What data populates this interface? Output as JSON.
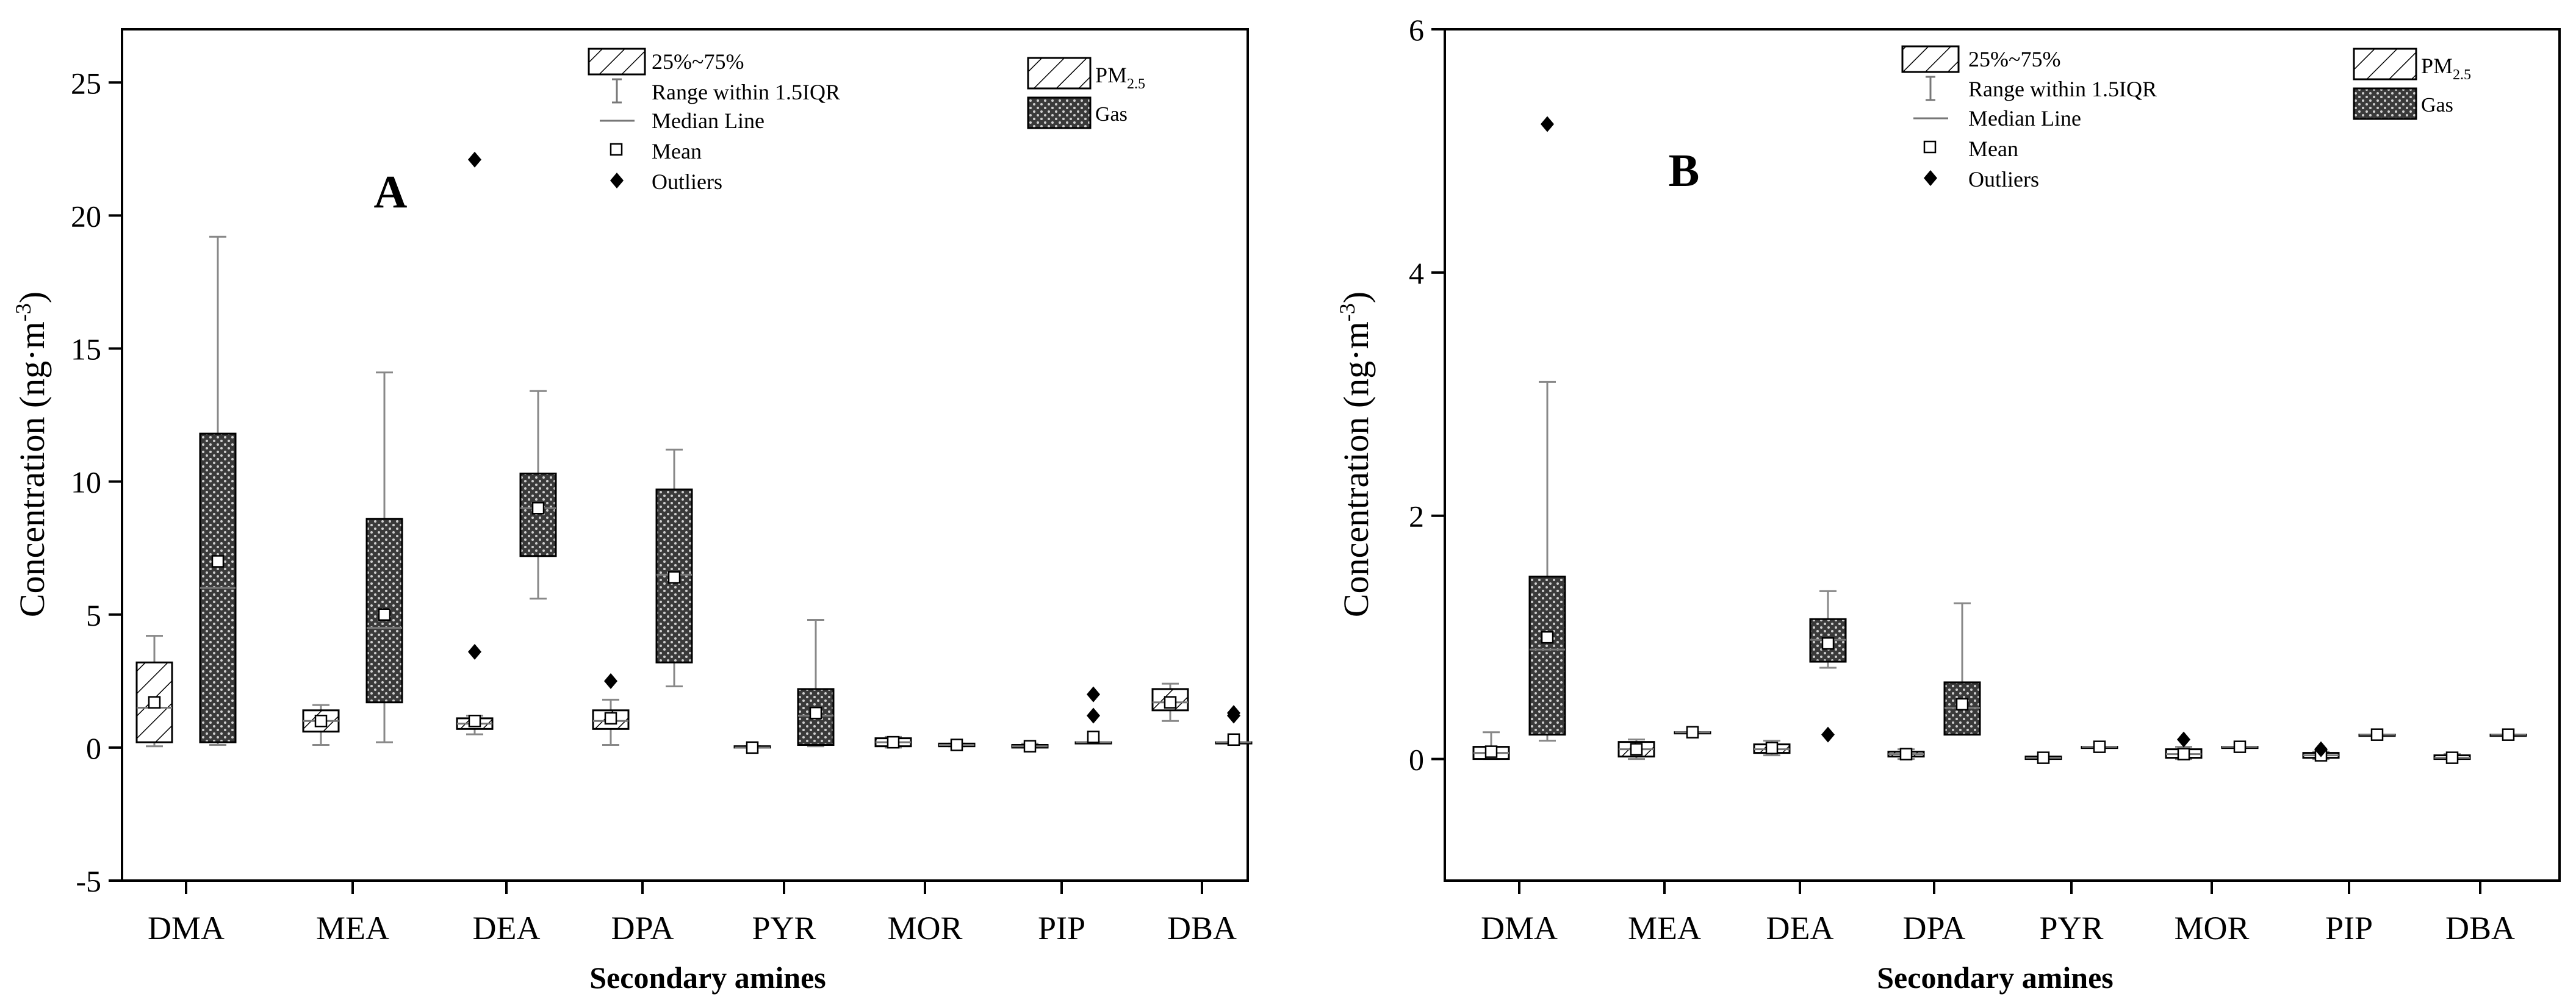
{
  "chart_data": [
    {
      "type": "box",
      "panel_label": "A",
      "xlabel": "Secondary amines",
      "ylabel_main": "Concentration (ng·m",
      "ylabel_sup": "-3",
      "ylabel_close": ")",
      "ylim": [
        -5,
        27
      ],
      "yticks": [
        "-5",
        "0",
        "5",
        "10",
        "15",
        "20",
        "25"
      ],
      "categories": [
        "DMA",
        "MEA",
        "DEA",
        "DPA",
        "PYR",
        "MOR",
        "PIP",
        "DBA"
      ],
      "series": [
        {
          "name": "PM2.5",
          "boxes": [
            {
              "q1": 0.2,
              "q3": 3.2,
              "median": 1.5,
              "whisker_low": 0.05,
              "whisker_high": 4.2,
              "mean": 1.7,
              "outliers": []
            },
            {
              "q1": 0.6,
              "q3": 1.4,
              "median": 1.0,
              "whisker_low": 0.1,
              "whisker_high": 1.6,
              "mean": 1.0,
              "outliers": []
            },
            {
              "q1": 0.7,
              "q3": 1.1,
              "median": 0.9,
              "whisker_low": 0.5,
              "whisker_high": 1.2,
              "mean": 1.0,
              "outliers": [
                3.6,
                22.1
              ]
            },
            {
              "q1": 0.7,
              "q3": 1.4,
              "median": 1.0,
              "whisker_low": 0.1,
              "whisker_high": 1.8,
              "mean": 1.1,
              "outliers": [
                2.5
              ]
            },
            {
              "q1": 0.0,
              "q3": 0.05,
              "median": 0.0,
              "whisker_low": 0.0,
              "whisker_high": 0.05,
              "mean": 0.0,
              "outliers": []
            },
            {
              "q1": 0.05,
              "q3": 0.35,
              "median": 0.2,
              "whisker_low": 0.0,
              "whisker_high": 0.4,
              "mean": 0.2,
              "outliers": []
            },
            {
              "q1": 0.0,
              "q3": 0.1,
              "median": 0.05,
              "whisker_low": 0.0,
              "whisker_high": 0.15,
              "mean": 0.05,
              "outliers": []
            },
            {
              "q1": 1.4,
              "q3": 2.2,
              "median": 1.7,
              "whisker_low": 1.0,
              "whisker_high": 2.4,
              "mean": 1.7,
              "outliers": []
            }
          ]
        },
        {
          "name": "Gas",
          "boxes": [
            {
              "q1": 0.2,
              "q3": 11.8,
              "median": 6.0,
              "whisker_low": 0.1,
              "whisker_high": 19.2,
              "mean": 7.0,
              "outliers": []
            },
            {
              "q1": 1.7,
              "q3": 8.6,
              "median": 4.5,
              "whisker_low": 0.2,
              "whisker_high": 14.1,
              "mean": 5.0,
              "outliers": []
            },
            {
              "q1": 7.2,
              "q3": 10.3,
              "median": 9.0,
              "whisker_low": 5.6,
              "whisker_high": 13.4,
              "mean": 9.0,
              "outliers": []
            },
            {
              "q1": 3.2,
              "q3": 9.7,
              "median": 6.5,
              "whisker_low": 2.3,
              "whisker_high": 11.2,
              "mean": 6.4,
              "outliers": []
            },
            {
              "q1": 0.1,
              "q3": 2.2,
              "median": 1.2,
              "whisker_low": 0.05,
              "whisker_high": 4.8,
              "mean": 1.3,
              "outliers": []
            },
            {
              "q1": 0.05,
              "q3": 0.15,
              "median": 0.1,
              "whisker_low": 0.05,
              "whisker_high": 0.15,
              "mean": 0.1,
              "outliers": []
            },
            {
              "q1": 0.2,
              "q3": 0.2,
              "median": 0.2,
              "whisker_low": 0.2,
              "whisker_high": 0.2,
              "mean": 0.4,
              "outliers": [
                1.2,
                2.0
              ]
            },
            {
              "q1": 0.2,
              "q3": 0.2,
              "median": 0.2,
              "whisker_low": 0.2,
              "whisker_high": 0.2,
              "mean": 0.3,
              "outliers": [
                1.2,
                1.3
              ]
            }
          ]
        }
      ]
    },
    {
      "type": "box",
      "panel_label": "B",
      "xlabel": "Secondary amines",
      "ylabel_main": "Concentration (ng·m",
      "ylabel_sup": "-3",
      "ylabel_close": ")",
      "ylim": [
        -1,
        6
      ],
      "yticks": [
        "0",
        "2",
        "4",
        "6"
      ],
      "categories": [
        "DMA",
        "MEA",
        "DEA",
        "DPA",
        "PYR",
        "MOR",
        "PIP",
        "DBA"
      ],
      "series": [
        {
          "name": "PM2.5",
          "boxes": [
            {
              "q1": 0.0,
              "q3": 0.1,
              "median": 0.05,
              "whisker_low": 0.0,
              "whisker_high": 0.22,
              "mean": 0.06,
              "outliers": []
            },
            {
              "q1": 0.02,
              "q3": 0.14,
              "median": 0.08,
              "whisker_low": 0.0,
              "whisker_high": 0.16,
              "mean": 0.08,
              "outliers": []
            },
            {
              "q1": 0.05,
              "q3": 0.12,
              "median": 0.08,
              "whisker_low": 0.03,
              "whisker_high": 0.15,
              "mean": 0.09,
              "outliers": []
            },
            {
              "q1": 0.02,
              "q3": 0.06,
              "median": 0.04,
              "whisker_low": 0.0,
              "whisker_high": 0.08,
              "mean": 0.04,
              "outliers": []
            },
            {
              "q1": 0.0,
              "q3": 0.02,
              "median": 0.01,
              "whisker_low": 0.0,
              "whisker_high": 0.02,
              "mean": 0.01,
              "outliers": []
            },
            {
              "q1": 0.01,
              "q3": 0.08,
              "median": 0.04,
              "whisker_low": 0.0,
              "whisker_high": 0.1,
              "mean": 0.04,
              "outliers": [
                0.16
              ]
            },
            {
              "q1": 0.01,
              "q3": 0.05,
              "median": 0.03,
              "whisker_low": 0.0,
              "whisker_high": 0.06,
              "mean": 0.03,
              "outliers": [
                0.08
              ]
            },
            {
              "q1": 0.0,
              "q3": 0.03,
              "median": 0.01,
              "whisker_low": 0.0,
              "whisker_high": 0.04,
              "mean": 0.01,
              "outliers": []
            }
          ]
        },
        {
          "name": "Gas",
          "boxes": [
            {
              "q1": 0.2,
              "q3": 1.5,
              "median": 0.9,
              "whisker_low": 0.15,
              "whisker_high": 3.1,
              "mean": 1.0,
              "outliers": [
                5.22
              ]
            },
            {
              "q1": 0.22,
              "q3": 0.22,
              "median": 0.22,
              "whisker_low": 0.22,
              "whisker_high": 0.22,
              "mean": 0.22,
              "outliers": []
            },
            {
              "q1": 0.8,
              "q3": 1.15,
              "median": 0.98,
              "whisker_low": 0.75,
              "whisker_high": 1.38,
              "mean": 0.95,
              "outliers": [
                0.2
              ]
            },
            {
              "q1": 0.2,
              "q3": 0.63,
              "median": 0.42,
              "whisker_low": 0.2,
              "whisker_high": 1.28,
              "mean": 0.45,
              "outliers": []
            },
            {
              "q1": 0.1,
              "q3": 0.1,
              "median": 0.1,
              "whisker_low": 0.1,
              "whisker_high": 0.1,
              "mean": 0.1,
              "outliers": []
            },
            {
              "q1": 0.1,
              "q3": 0.1,
              "median": 0.1,
              "whisker_low": 0.1,
              "whisker_high": 0.1,
              "mean": 0.1,
              "outliers": []
            },
            {
              "q1": 0.2,
              "q3": 0.2,
              "median": 0.2,
              "whisker_low": 0.2,
              "whisker_high": 0.2,
              "mean": 0.2,
              "outliers": []
            },
            {
              "q1": 0.2,
              "q3": 0.2,
              "median": 0.2,
              "whisker_low": 0.2,
              "whisker_high": 0.2,
              "mean": 0.2,
              "outliers": []
            }
          ]
        }
      ]
    }
  ],
  "legend": {
    "box_label": "25%~75%",
    "range_label": "Range within 1.5IQR",
    "median_label": "Median Line",
    "mean_label": "Mean",
    "outlier_label": "Outliers",
    "pm_main": "PM",
    "pm_sub": "2.5",
    "gas_label": "Gas"
  }
}
